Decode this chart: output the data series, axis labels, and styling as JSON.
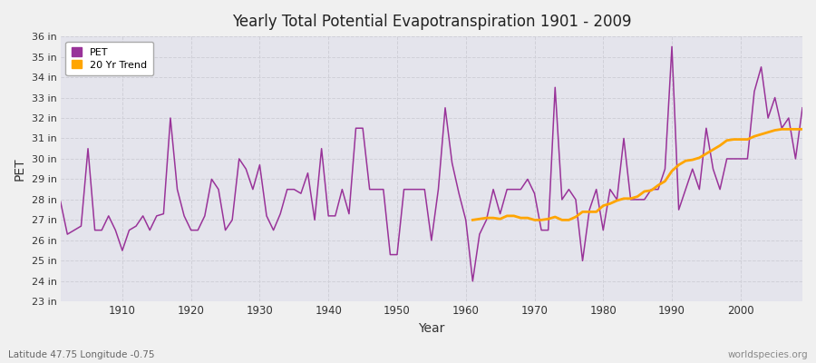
{
  "title": "Yearly Total Potential Evapotranspiration 1901 - 2009",
  "xlabel": "Year",
  "ylabel": "PET",
  "subtitle_left": "Latitude 47.75 Longitude -0.75",
  "subtitle_right": "worldspecies.org",
  "pet_color": "#993399",
  "trend_color": "#ffa500",
  "bg_color": "#f0f0f0",
  "plot_bg_color": "#e4e4ec",
  "grid_color": "#d0d0d8",
  "ylim_min": 23,
  "ylim_max": 36,
  "years": [
    1901,
    1902,
    1903,
    1904,
    1905,
    1906,
    1907,
    1908,
    1909,
    1910,
    1911,
    1912,
    1913,
    1914,
    1915,
    1916,
    1917,
    1918,
    1919,
    1920,
    1921,
    1922,
    1923,
    1924,
    1925,
    1926,
    1927,
    1928,
    1929,
    1930,
    1931,
    1932,
    1933,
    1934,
    1935,
    1936,
    1937,
    1938,
    1939,
    1940,
    1941,
    1942,
    1943,
    1944,
    1945,
    1946,
    1947,
    1948,
    1949,
    1950,
    1951,
    1952,
    1953,
    1954,
    1955,
    1956,
    1957,
    1958,
    1959,
    1960,
    1961,
    1962,
    1963,
    1964,
    1965,
    1966,
    1967,
    1968,
    1969,
    1970,
    1971,
    1972,
    1973,
    1974,
    1975,
    1976,
    1977,
    1978,
    1979,
    1980,
    1981,
    1982,
    1983,
    1984,
    1985,
    1986,
    1987,
    1988,
    1989,
    1990,
    1991,
    1992,
    1993,
    1994,
    1995,
    1996,
    1997,
    1998,
    1999,
    2000,
    2001,
    2002,
    2003,
    2004,
    2005,
    2006,
    2007,
    2008,
    2009
  ],
  "pet": [
    27.9,
    26.3,
    26.5,
    26.7,
    30.5,
    26.5,
    26.5,
    27.2,
    26.5,
    25.5,
    26.5,
    26.7,
    27.2,
    26.5,
    27.2,
    27.3,
    32.0,
    28.5,
    27.2,
    26.5,
    26.5,
    27.2,
    29.0,
    28.5,
    26.5,
    27.0,
    30.0,
    29.5,
    28.5,
    29.7,
    27.2,
    26.5,
    27.3,
    28.5,
    28.5,
    28.3,
    29.3,
    27.0,
    30.5,
    27.2,
    27.2,
    28.5,
    27.3,
    31.5,
    31.5,
    28.5,
    28.5,
    28.5,
    25.3,
    25.3,
    28.5,
    28.5,
    28.5,
    28.5,
    26.0,
    28.5,
    32.5,
    29.8,
    28.3,
    27.0,
    24.0,
    26.3,
    27.0,
    28.5,
    27.3,
    28.5,
    28.5,
    28.5,
    29.0,
    28.3,
    26.5,
    26.5,
    33.5,
    28.0,
    28.5,
    28.0,
    25.0,
    27.5,
    28.5,
    26.5,
    28.5,
    28.0,
    31.0,
    28.0,
    28.0,
    28.0,
    28.5,
    28.5,
    29.5,
    35.5,
    27.5,
    28.5,
    29.5,
    28.5,
    31.5,
    29.5,
    28.5,
    30.0,
    30.0,
    30.0,
    30.0,
    33.3,
    34.5,
    32.0,
    33.0,
    31.5,
    32.0,
    30.0,
    32.5
  ],
  "trend_years": [
    1961,
    1962,
    1963,
    1964,
    1965,
    1966,
    1967,
    1968,
    1969,
    1970,
    1971,
    1972,
    1973,
    1974,
    1975,
    1976,
    1977,
    1978,
    1979,
    1980,
    1981,
    1982,
    1983,
    1984,
    1985,
    1986,
    1987,
    1988,
    1989,
    1990,
    1991,
    1992,
    1993,
    1994,
    1995,
    1996,
    1997,
    1998,
    1999,
    2000,
    2001,
    2002,
    2003,
    2004,
    2005,
    2006,
    2007,
    2008,
    2009
  ],
  "trend": [
    27.0,
    27.05,
    27.1,
    27.1,
    27.05,
    27.2,
    27.2,
    27.1,
    27.1,
    27.0,
    27.0,
    27.05,
    27.15,
    27.0,
    27.0,
    27.15,
    27.4,
    27.4,
    27.4,
    27.7,
    27.8,
    27.95,
    28.05,
    28.05,
    28.15,
    28.4,
    28.45,
    28.7,
    28.9,
    29.4,
    29.7,
    29.9,
    29.95,
    30.05,
    30.25,
    30.45,
    30.65,
    30.9,
    30.95,
    30.95,
    30.95,
    31.1,
    31.2,
    31.3,
    31.4,
    31.45,
    31.45,
    31.45,
    31.45
  ],
  "xticks": [
    1910,
    1920,
    1930,
    1940,
    1950,
    1960,
    1970,
    1980,
    1990,
    2000
  ],
  "yticks": [
    23,
    24,
    25,
    26,
    27,
    28,
    29,
    30,
    31,
    32,
    33,
    34,
    35,
    36
  ]
}
